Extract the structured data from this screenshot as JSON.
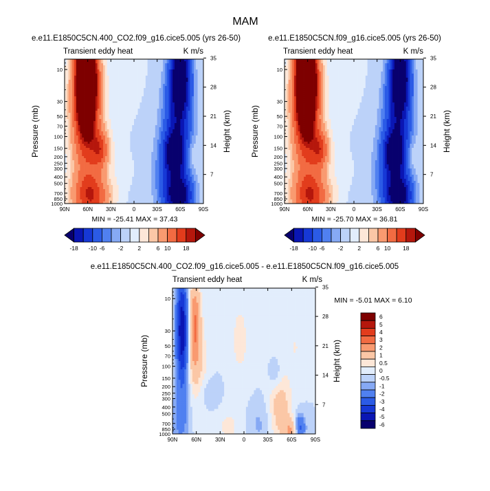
{
  "figure": {
    "title": "MAM"
  },
  "chart_data": [
    {
      "type": "heatmap",
      "subtitle": "e.e11.E1850C5CN.400_CO2.f09_g16.cice5.005 (yrs 26-50)",
      "field_label": "Transient eddy heat",
      "units": "K m/s",
      "xlabel": "",
      "ylabel": "Pressure (mb)",
      "ylabel_right": "Height (km)",
      "x_ticks": [
        "90N",
        "60N",
        "30N",
        "0",
        "30S",
        "60S",
        "90S"
      ],
      "x_tick_values": [
        90,
        60,
        30,
        0,
        -30,
        -60,
        -90
      ],
      "y_ticks": [
        "10",
        "30",
        "50",
        "70",
        "100",
        "150",
        "200",
        "250",
        "300",
        "400",
        "500",
        "700",
        "850",
        "1000"
      ],
      "y_tick_values": [
        10,
        30,
        50,
        70,
        100,
        150,
        200,
        250,
        300,
        400,
        500,
        700,
        850,
        1000
      ],
      "y2_ticks": [
        "35",
        "28",
        "21",
        "14",
        "7"
      ],
      "y2_tick_values": [
        35,
        28,
        21,
        14,
        7
      ],
      "stats": "MIN = -25.41   MAX = 37.43",
      "min": -25.41,
      "max": 37.43,
      "features": [
        {
          "lat": 62,
          "p": 12,
          "value": 36,
          "wx": 10,
          "wz": 1.25
        },
        {
          "lat": 62,
          "p": 65,
          "value": 14,
          "wx": 14,
          "wz": 1.6
        },
        {
          "lat": 43,
          "p": 160,
          "value": 12,
          "wx": 8,
          "wz": 0.45
        },
        {
          "lat": 55,
          "p": 800,
          "value": 15,
          "wx": 17,
          "wz": 0.55
        },
        {
          "lat": 10,
          "p": 30,
          "value": 1.5,
          "wx": 14,
          "wz": 1.2
        },
        {
          "lat": -60,
          "p": 12,
          "value": -24,
          "wx": 9,
          "wz": 0.9
        },
        {
          "lat": -56,
          "p": 80,
          "value": -13,
          "wx": 13,
          "wz": 1.3
        },
        {
          "lat": -52,
          "p": 180,
          "value": -17,
          "wx": 9,
          "wz": 0.5
        },
        {
          "lat": -58,
          "p": 780,
          "value": -22,
          "wx": 12,
          "wz": 0.5
        },
        {
          "lat": -38,
          "p": 400,
          "value": -4,
          "wx": 10,
          "wz": 0.8
        },
        {
          "lat": -5,
          "p": 200,
          "value": -1.5,
          "wx": 14,
          "wz": 1.4
        },
        {
          "lat": 10,
          "p": 300,
          "value": 1.8,
          "wx": 10,
          "wz": 0.5
        },
        {
          "lat": -74,
          "p": 190,
          "value": 3,
          "wx": 4,
          "wz": 0.35
        }
      ]
    },
    {
      "type": "heatmap",
      "subtitle": "e.e11.E1850C5CN.f09_g16.cice5.005 (yrs 26-50)",
      "field_label": "Transient eddy heat",
      "units": "K m/s",
      "xlabel": "",
      "ylabel": "Pressure (mb)",
      "ylabel_right": "Height (km)",
      "x_ticks": [
        "90N",
        "60N",
        "30N",
        "0",
        "30S",
        "60S",
        "90S"
      ],
      "x_tick_values": [
        90,
        60,
        30,
        0,
        -30,
        -60,
        -90
      ],
      "y_ticks": [
        "10",
        "30",
        "50",
        "70",
        "100",
        "150",
        "200",
        "250",
        "300",
        "400",
        "500",
        "700",
        "850",
        "1000"
      ],
      "y_tick_values": [
        10,
        30,
        50,
        70,
        100,
        150,
        200,
        250,
        300,
        400,
        500,
        700,
        850,
        1000
      ],
      "y2_ticks": [
        "35",
        "28",
        "21",
        "14",
        "7"
      ],
      "y2_tick_values": [
        35,
        28,
        21,
        14,
        7
      ],
      "stats": "MIN = -25.70   MAX = 36.81",
      "min": -25.7,
      "max": 36.81,
      "features": [
        {
          "lat": 62,
          "p": 12,
          "value": 36,
          "wx": 10,
          "wz": 1.25
        },
        {
          "lat": 62,
          "p": 65,
          "value": 14,
          "wx": 14,
          "wz": 1.6
        },
        {
          "lat": 43,
          "p": 160,
          "value": 12,
          "wx": 8,
          "wz": 0.45
        },
        {
          "lat": 55,
          "p": 800,
          "value": 15,
          "wx": 17,
          "wz": 0.55
        },
        {
          "lat": 10,
          "p": 30,
          "value": 1.5,
          "wx": 14,
          "wz": 1.2
        },
        {
          "lat": -60,
          "p": 12,
          "value": -24,
          "wx": 9,
          "wz": 0.9
        },
        {
          "lat": -56,
          "p": 80,
          "value": -13,
          "wx": 13,
          "wz": 1.3
        },
        {
          "lat": -52,
          "p": 180,
          "value": -17,
          "wx": 9,
          "wz": 0.5
        },
        {
          "lat": -58,
          "p": 780,
          "value": -22,
          "wx": 12,
          "wz": 0.5
        },
        {
          "lat": -38,
          "p": 400,
          "value": -4,
          "wx": 10,
          "wz": 0.8
        },
        {
          "lat": -5,
          "p": 200,
          "value": -1.5,
          "wx": 14,
          "wz": 1.4
        },
        {
          "lat": 10,
          "p": 300,
          "value": 1.8,
          "wx": 10,
          "wz": 0.5
        },
        {
          "lat": -74,
          "p": 190,
          "value": 3,
          "wx": 4,
          "wz": 0.35
        }
      ]
    },
    {
      "type": "heatmap",
      "subtitle": "e.e11.E1850C5CN.400_CO2.f09_g16.cice5.005 - e.e11.E1850C5CN.f09_g16.cice5.005",
      "field_label": "Transient eddy heat",
      "units": "K m/s",
      "xlabel": "",
      "ylabel": "Pressure (mb)",
      "ylabel_right": "Height (km)",
      "x_ticks": [
        "90N",
        "60N",
        "30N",
        "0",
        "30S",
        "60S",
        "90S"
      ],
      "x_tick_values": [
        90,
        60,
        30,
        0,
        -30,
        -60,
        -90
      ],
      "y_ticks": [
        "10",
        "30",
        "50",
        "70",
        "100",
        "150",
        "200",
        "250",
        "300",
        "400",
        "500",
        "700",
        "850",
        "1000"
      ],
      "y_tick_values": [
        10,
        30,
        50,
        70,
        100,
        150,
        200,
        250,
        300,
        400,
        500,
        700,
        850,
        1000
      ],
      "y2_ticks": [
        "35",
        "28",
        "21",
        "14",
        "7"
      ],
      "y2_tick_values": [
        35,
        28,
        21,
        14,
        7
      ],
      "stats": "MIN = -5.01   MAX =  6.10",
      "min": -5.01,
      "max": 6.1,
      "features": [
        {
          "lat": 78,
          "p": 30,
          "value": -5.0,
          "wx": 5,
          "wz": 1.3
        },
        {
          "lat": 62,
          "p": 25,
          "value": 3.0,
          "wx": 5,
          "wz": 1.1
        },
        {
          "lat": 55,
          "p": 120,
          "value": 0.8,
          "wx": 9,
          "wz": 1.2
        },
        {
          "lat": 80,
          "p": 600,
          "value": -1.2,
          "wx": 8,
          "wz": 0.7
        },
        {
          "lat": 45,
          "p": 250,
          "value": -0.7,
          "wx": 10,
          "wz": 0.4
        },
        {
          "lat": 5,
          "p": 40,
          "value": 0.6,
          "wx": 12,
          "wz": 1.4
        },
        {
          "lat": -45,
          "p": 400,
          "value": 1.5,
          "wx": 10,
          "wz": 0.9
        },
        {
          "lat": -40,
          "p": 140,
          "value": -0.8,
          "wx": 6,
          "wz": 0.4
        },
        {
          "lat": -60,
          "p": 900,
          "value": 2.0,
          "wx": 6,
          "wz": 0.3
        },
        {
          "lat": -70,
          "p": 800,
          "value": -2.5,
          "wx": 5,
          "wz": 0.3
        },
        {
          "lat": -65,
          "p": 50,
          "value": 0.5,
          "wx": 6,
          "wz": 0.8
        },
        {
          "lat": -20,
          "p": 700,
          "value": -0.6,
          "wx": 12,
          "wz": 0.6
        },
        {
          "lat": 20,
          "p": 800,
          "value": 0.6,
          "wx": 12,
          "wz": 0.5
        }
      ]
    }
  ],
  "colorbar_top": {
    "levels": [
      -20,
      -18,
      -14,
      -10,
      -6,
      -4,
      -2,
      0,
      2,
      4,
      6,
      10,
      14,
      18,
      20
    ],
    "labels": [
      "-18",
      "-10",
      "-6",
      "-2",
      "2",
      "6",
      "10",
      "18"
    ],
    "label_levels": [
      -18,
      -10,
      -6,
      -2,
      2,
      6,
      10,
      18
    ],
    "colors": [
      "#08006e",
      "#0a16b4",
      "#1638d6",
      "#2b5be6",
      "#5080f0",
      "#86a9f4",
      "#bcd2f9",
      "#e2edfc",
      "#fde7d8",
      "#fbc7a6",
      "#f99a70",
      "#f26b42",
      "#e23c1c",
      "#b5170c",
      "#7e0000"
    ]
  },
  "colorbar_diff": {
    "levels": [
      -6,
      -5,
      -4,
      -3,
      -2,
      -1,
      -0.5,
      0,
      0.5,
      1,
      2,
      3,
      4,
      5,
      6
    ],
    "labels": [
      "6",
      "5",
      "4",
      "3",
      "2",
      "1",
      "0.5",
      "0",
      "-0.5",
      "-1",
      "-2",
      "-3",
      "-4",
      "-5",
      "-6"
    ],
    "colors": [
      "#08006e",
      "#0a16b4",
      "#1638d6",
      "#2b5be6",
      "#5080f0",
      "#86a9f4",
      "#bcd2f9",
      "#e2edfc",
      "#fde7d8",
      "#fbc7a6",
      "#f99a70",
      "#f26b42",
      "#e23c1c",
      "#b5170c",
      "#7e0000"
    ]
  }
}
